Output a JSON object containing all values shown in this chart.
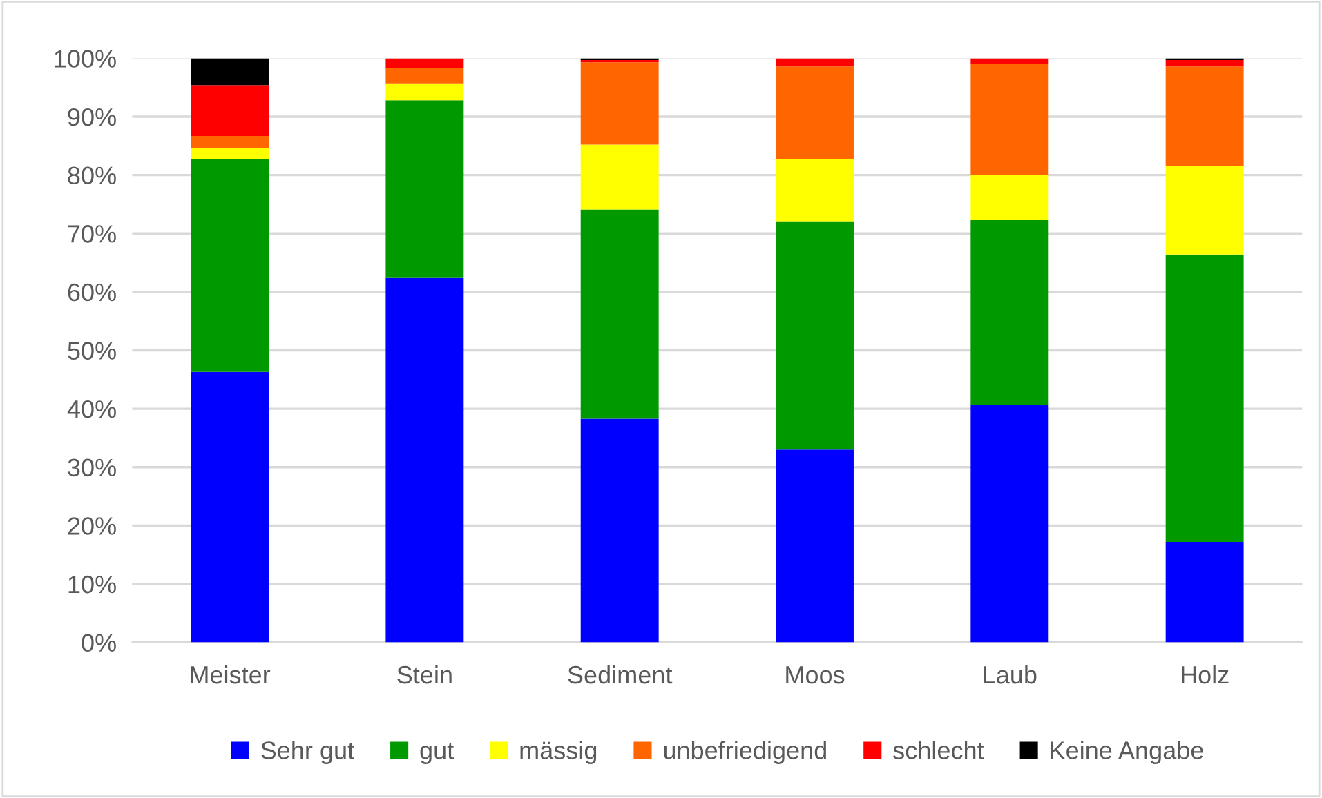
{
  "chart_data": {
    "type": "bar",
    "stacked": true,
    "categories": [
      "Meister",
      "Stein",
      "Sediment",
      "Moos",
      "Laub",
      "Holz"
    ],
    "series": [
      {
        "name": "Sehr gut",
        "color": "#0000ff",
        "values": [
          46.3,
          62.5,
          38.3,
          33.0,
          40.6,
          17.2
        ]
      },
      {
        "name": "gut",
        "color": "#009900",
        "values": [
          36.4,
          30.3,
          35.8,
          39.1,
          31.8,
          49.2
        ]
      },
      {
        "name": "mässig",
        "color": "#ffff00",
        "values": [
          1.9,
          2.9,
          11.1,
          10.6,
          7.6,
          15.2
        ]
      },
      {
        "name": "unbefriedigend",
        "color": "#ff6600",
        "values": [
          2.1,
          2.6,
          14.1,
          15.9,
          19.1,
          17.0
        ]
      },
      {
        "name": "schlecht",
        "color": "#ff0000",
        "values": [
          8.7,
          1.7,
          0.4,
          1.4,
          0.9,
          1.1
        ]
      },
      {
        "name": "Keine Angabe",
        "color": "#000000",
        "values": [
          4.6,
          0,
          0.3,
          0,
          0,
          0.3
        ]
      }
    ],
    "ylim": [
      0,
      100
    ],
    "yticks": [
      {
        "value": 0,
        "label": "0%"
      },
      {
        "value": 10,
        "label": "10%"
      },
      {
        "value": 20,
        "label": "20%"
      },
      {
        "value": 30,
        "label": "30%"
      },
      {
        "value": 40,
        "label": "40%"
      },
      {
        "value": 50,
        "label": "50%"
      },
      {
        "value": 60,
        "label": "60%"
      },
      {
        "value": 70,
        "label": "70%"
      },
      {
        "value": 80,
        "label": "80%"
      },
      {
        "value": 90,
        "label": "90%"
      },
      {
        "value": 100,
        "label": "100%"
      }
    ],
    "grid": "y",
    "legend": "bottom"
  }
}
